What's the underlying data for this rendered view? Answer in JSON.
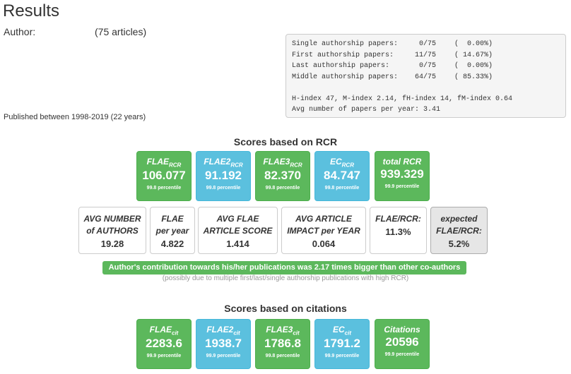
{
  "page_title": "Results",
  "author": {
    "label": "Author:",
    "count": "(75 articles)"
  },
  "published": "Published between 1998-2019 (22 years)",
  "stats": {
    "rows": [
      {
        "label": "Single authorship papers:",
        "value": "0/75",
        "pct": "(  0.00%)"
      },
      {
        "label": "First authorship papers:",
        "value": "11/75",
        "pct": "( 14.67%)"
      },
      {
        "label": "Last authorship papers:",
        "value": "0/75",
        "pct": "(  0.00%)"
      },
      {
        "label": "Middle authorship papers:",
        "value": "64/75",
        "pct": "( 85.33%)"
      }
    ],
    "indices": "H-index 47, M-index 2.14, fH-index 14, fM-index 0.64",
    "avg_papers": "Avg number of papers per year: 3.41"
  },
  "rcr": {
    "title": "Scores based on RCR",
    "scores": [
      {
        "name": "FLAE",
        "sub": "RCR",
        "value": "106.077",
        "percentile": "99.8 percentile",
        "color": "green"
      },
      {
        "name": "FLAE2",
        "sub": "RCR",
        "value": "91.192",
        "percentile": "99.8 percentile",
        "color": "blue"
      },
      {
        "name": "FLAE3",
        "sub": "RCR",
        "value": "82.370",
        "percentile": "99.8 percentile",
        "color": "green"
      },
      {
        "name": "EC",
        "sub": "RCR",
        "value": "84.747",
        "percentile": "99.8 percentile",
        "color": "blue"
      },
      {
        "name": "total RCR",
        "sub": "",
        "value": "939.329",
        "percentile": "99.9 percentile",
        "color": "green"
      }
    ]
  },
  "metrics": [
    {
      "line1": "AVG NUMBER",
      "line2": "of AUTHORS",
      "value": "19.28"
    },
    {
      "line1": "FLAE",
      "line2": "per year",
      "value": "4.822"
    },
    {
      "line1": "AVG FLAE",
      "line2": "ARTICLE SCORE",
      "value": "1.414"
    },
    {
      "line1": "AVG ARTICLE",
      "line2": "IMPACT per YEAR",
      "value": "0.064"
    },
    {
      "line1": "FLAE/RCR:",
      "line2": "",
      "value": "11.3%"
    },
    {
      "line1": "expected",
      "line2": "FLAE/RCR:",
      "value": "5.2%"
    }
  ],
  "banner": "Author's contribution towards his/her publications was 2.17 times bigger than other co-authors",
  "banner_note": "(possibly due to multiple first/last/single authorship publications with high RCR)",
  "cit": {
    "title": "Scores based on citations",
    "scores": [
      {
        "name": "FLAE",
        "sub": "cit",
        "value": "2283.6",
        "percentile": "99.9 percentile",
        "color": "green"
      },
      {
        "name": "FLAE2",
        "sub": "cit",
        "value": "1938.7",
        "percentile": "99.9 percentile",
        "color": "blue"
      },
      {
        "name": "FLAE3",
        "sub": "cit",
        "value": "1786.8",
        "percentile": "99.8 percentile",
        "color": "green"
      },
      {
        "name": "EC",
        "sub": "cit",
        "value": "1791.2",
        "percentile": "99.9 percentile",
        "color": "blue"
      },
      {
        "name": "Citations",
        "sub": "",
        "value": "20596",
        "percentile": "99.9 percentile",
        "color": "green"
      }
    ]
  },
  "colors": {
    "green": "#5cb85c",
    "blue": "#5bc0de",
    "gray_box": "#e6e6e6"
  }
}
